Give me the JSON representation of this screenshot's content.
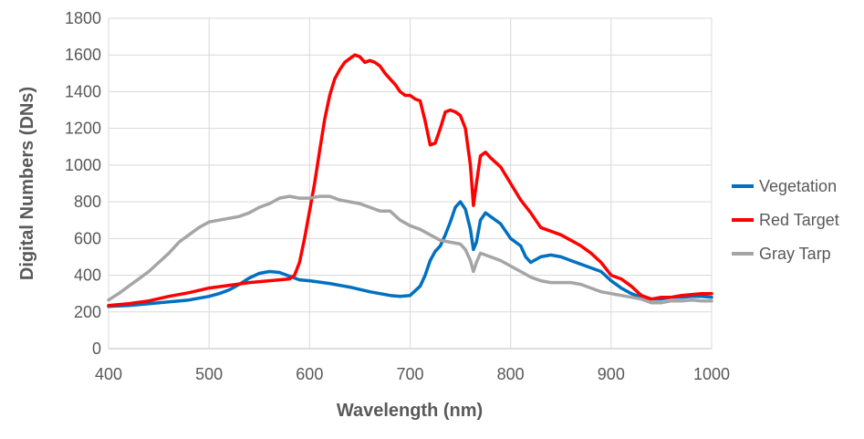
{
  "chart_data": {
    "type": "line",
    "xlabel": "Wavelength (nm)",
    "ylabel": "Digital Numbers (DNs)",
    "xlim": [
      400,
      1000
    ],
    "ylim": [
      0,
      1800
    ],
    "x_ticks": [
      400,
      500,
      600,
      700,
      800,
      900,
      1000
    ],
    "y_ticks": [
      0,
      200,
      400,
      600,
      800,
      1000,
      1200,
      1400,
      1600,
      1800
    ],
    "grid": true,
    "legend_position": "right",
    "series": [
      {
        "name": "Vegetation",
        "color": "#0070C0",
        "points": [
          [
            400,
            230
          ],
          [
            420,
            235
          ],
          [
            440,
            245
          ],
          [
            460,
            255
          ],
          [
            480,
            265
          ],
          [
            500,
            285
          ],
          [
            510,
            300
          ],
          [
            520,
            320
          ],
          [
            530,
            350
          ],
          [
            540,
            385
          ],
          [
            550,
            410
          ],
          [
            560,
            420
          ],
          [
            570,
            415
          ],
          [
            580,
            395
          ],
          [
            590,
            375
          ],
          [
            600,
            370
          ],
          [
            620,
            355
          ],
          [
            640,
            335
          ],
          [
            660,
            310
          ],
          [
            680,
            290
          ],
          [
            690,
            285
          ],
          [
            700,
            290
          ],
          [
            710,
            340
          ],
          [
            715,
            400
          ],
          [
            720,
            480
          ],
          [
            725,
            530
          ],
          [
            730,
            560
          ],
          [
            735,
            620
          ],
          [
            740,
            690
          ],
          [
            745,
            770
          ],
          [
            750,
            800
          ],
          [
            755,
            760
          ],
          [
            760,
            650
          ],
          [
            763,
            540
          ],
          [
            766,
            580
          ],
          [
            770,
            700
          ],
          [
            775,
            740
          ],
          [
            780,
            720
          ],
          [
            790,
            680
          ],
          [
            800,
            600
          ],
          [
            810,
            560
          ],
          [
            815,
            500
          ],
          [
            820,
            470
          ],
          [
            830,
            500
          ],
          [
            840,
            510
          ],
          [
            850,
            500
          ],
          [
            860,
            480
          ],
          [
            870,
            460
          ],
          [
            880,
            440
          ],
          [
            890,
            420
          ],
          [
            900,
            370
          ],
          [
            910,
            330
          ],
          [
            920,
            300
          ],
          [
            930,
            280
          ],
          [
            940,
            270
          ],
          [
            950,
            270
          ],
          [
            960,
            280
          ],
          [
            970,
            280
          ],
          [
            980,
            285
          ],
          [
            990,
            285
          ],
          [
            1000,
            280
          ]
        ]
      },
      {
        "name": "Red Target",
        "color": "#FF0000",
        "points": [
          [
            400,
            235
          ],
          [
            420,
            245
          ],
          [
            440,
            260
          ],
          [
            460,
            285
          ],
          [
            480,
            305
          ],
          [
            500,
            330
          ],
          [
            520,
            345
          ],
          [
            540,
            360
          ],
          [
            560,
            370
          ],
          [
            580,
            380
          ],
          [
            585,
            400
          ],
          [
            590,
            470
          ],
          [
            595,
            600
          ],
          [
            600,
            750
          ],
          [
            605,
            900
          ],
          [
            610,
            1080
          ],
          [
            615,
            1250
          ],
          [
            620,
            1380
          ],
          [
            625,
            1470
          ],
          [
            630,
            1520
          ],
          [
            635,
            1560
          ],
          [
            640,
            1580
          ],
          [
            645,
            1600
          ],
          [
            650,
            1590
          ],
          [
            655,
            1560
          ],
          [
            660,
            1570
          ],
          [
            665,
            1560
          ],
          [
            670,
            1540
          ],
          [
            675,
            1500
          ],
          [
            680,
            1470
          ],
          [
            685,
            1440
          ],
          [
            690,
            1400
          ],
          [
            695,
            1380
          ],
          [
            700,
            1380
          ],
          [
            705,
            1360
          ],
          [
            710,
            1350
          ],
          [
            715,
            1240
          ],
          [
            720,
            1110
          ],
          [
            725,
            1120
          ],
          [
            730,
            1200
          ],
          [
            735,
            1290
          ],
          [
            740,
            1300
          ],
          [
            745,
            1290
          ],
          [
            750,
            1270
          ],
          [
            755,
            1200
          ],
          [
            760,
            1000
          ],
          [
            763,
            780
          ],
          [
            766,
            900
          ],
          [
            770,
            1050
          ],
          [
            775,
            1070
          ],
          [
            780,
            1040
          ],
          [
            790,
            990
          ],
          [
            800,
            900
          ],
          [
            810,
            810
          ],
          [
            820,
            740
          ],
          [
            830,
            660
          ],
          [
            840,
            640
          ],
          [
            850,
            620
          ],
          [
            860,
            590
          ],
          [
            870,
            560
          ],
          [
            880,
            520
          ],
          [
            890,
            470
          ],
          [
            900,
            400
          ],
          [
            910,
            380
          ],
          [
            920,
            340
          ],
          [
            930,
            290
          ],
          [
            940,
            270
          ],
          [
            950,
            280
          ],
          [
            960,
            280
          ],
          [
            970,
            290
          ],
          [
            980,
            295
          ],
          [
            990,
            300
          ],
          [
            1000,
            300
          ]
        ]
      },
      {
        "name": "Gray Tarp",
        "color": "#A5A5A5",
        "points": [
          [
            400,
            265
          ],
          [
            410,
            300
          ],
          [
            420,
            340
          ],
          [
            430,
            380
          ],
          [
            440,
            420
          ],
          [
            450,
            470
          ],
          [
            460,
            520
          ],
          [
            470,
            580
          ],
          [
            480,
            620
          ],
          [
            490,
            660
          ],
          [
            500,
            690
          ],
          [
            510,
            700
          ],
          [
            520,
            710
          ],
          [
            530,
            720
          ],
          [
            540,
            740
          ],
          [
            550,
            770
          ],
          [
            560,
            790
          ],
          [
            570,
            820
          ],
          [
            580,
            830
          ],
          [
            590,
            820
          ],
          [
            600,
            820
          ],
          [
            610,
            830
          ],
          [
            620,
            830
          ],
          [
            630,
            810
          ],
          [
            640,
            800
          ],
          [
            650,
            790
          ],
          [
            660,
            770
          ],
          [
            670,
            750
          ],
          [
            680,
            750
          ],
          [
            690,
            700
          ],
          [
            700,
            670
          ],
          [
            710,
            650
          ],
          [
            720,
            620
          ],
          [
            730,
            590
          ],
          [
            740,
            580
          ],
          [
            750,
            570
          ],
          [
            755,
            540
          ],
          [
            760,
            480
          ],
          [
            763,
            420
          ],
          [
            766,
            470
          ],
          [
            770,
            520
          ],
          [
            780,
            500
          ],
          [
            790,
            480
          ],
          [
            800,
            450
          ],
          [
            810,
            420
          ],
          [
            820,
            390
          ],
          [
            830,
            370
          ],
          [
            840,
            360
          ],
          [
            850,
            360
          ],
          [
            860,
            360
          ],
          [
            870,
            350
          ],
          [
            880,
            330
          ],
          [
            890,
            310
          ],
          [
            900,
            300
          ],
          [
            910,
            290
          ],
          [
            920,
            280
          ],
          [
            930,
            270
          ],
          [
            940,
            250
          ],
          [
            950,
            250
          ],
          [
            960,
            260
          ],
          [
            970,
            260
          ],
          [
            980,
            265
          ],
          [
            990,
            260
          ],
          [
            1000,
            260
          ]
        ]
      }
    ]
  }
}
